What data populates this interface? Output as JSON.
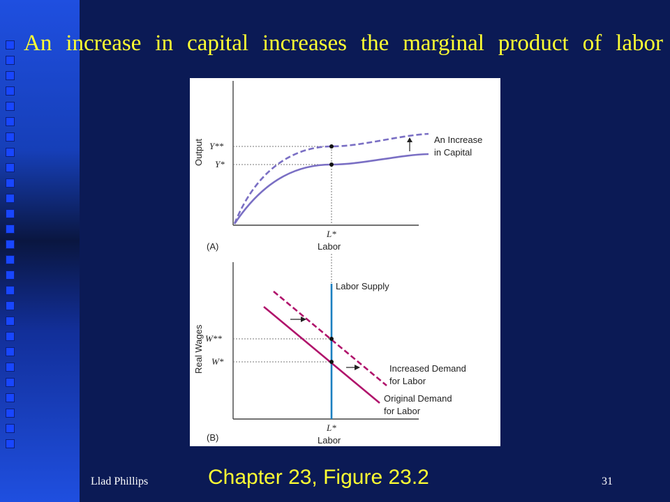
{
  "slide": {
    "title": "An increase in capital increases the marginal product of labor",
    "caption": "Chapter 23, Figure 23.2",
    "author": "Llad Phillips",
    "page_number": "31"
  },
  "colors": {
    "background": "#0b1a55",
    "title_text": "#ffff33",
    "curve": "#7a6fc4",
    "demand": "#b0126b",
    "supply": "#1a7fc0"
  },
  "chart_data": [
    {
      "type": "line",
      "panel_label": "(A)",
      "ylabel": "Output",
      "xlabel": "Labor",
      "x_tick_labels": [
        "L*"
      ],
      "y_tick_labels": [
        "Y**",
        "Y*"
      ],
      "series": [
        {
          "name": "An Increase in Capital",
          "style": "dashed",
          "x": [
            0,
            0.1,
            0.25,
            0.5,
            0.75,
            1.0
          ],
          "y": [
            0.0,
            0.52,
            0.7,
            0.86,
            0.93,
            0.955
          ]
        },
        {
          "name": "",
          "style": "solid",
          "x": [
            0,
            0.1,
            0.25,
            0.5,
            0.75,
            1.0
          ],
          "y": [
            0.0,
            0.38,
            0.52,
            0.66,
            0.72,
            0.745
          ]
        }
      ],
      "annotations": [
        "An Increase",
        "in Capital"
      ],
      "xlim": [
        0,
        1
      ],
      "ylim": [
        0,
        1
      ],
      "grid": false
    },
    {
      "type": "line",
      "panel_label": "(B)",
      "ylabel": "Real Wages",
      "xlabel": "Labor",
      "x_tick_labels": [
        "L*"
      ],
      "y_tick_labels": [
        "W**",
        "W*"
      ],
      "series": [
        {
          "name": "Labor Supply",
          "style": "solid",
          "x": [
            0.5,
            0.5
          ],
          "y": [
            0.0,
            1.0
          ]
        },
        {
          "name": "Increased Demand for Labor",
          "style": "dashed",
          "x": [
            0.22,
            0.82
          ],
          "y": [
            0.91,
            0.25
          ]
        },
        {
          "name": "Original Demand for Labor",
          "style": "solid",
          "x": [
            0.17,
            0.79
          ],
          "y": [
            0.78,
            0.1
          ]
        }
      ],
      "xlim": [
        0,
        1
      ],
      "ylim": [
        0,
        1
      ],
      "grid": false
    }
  ]
}
